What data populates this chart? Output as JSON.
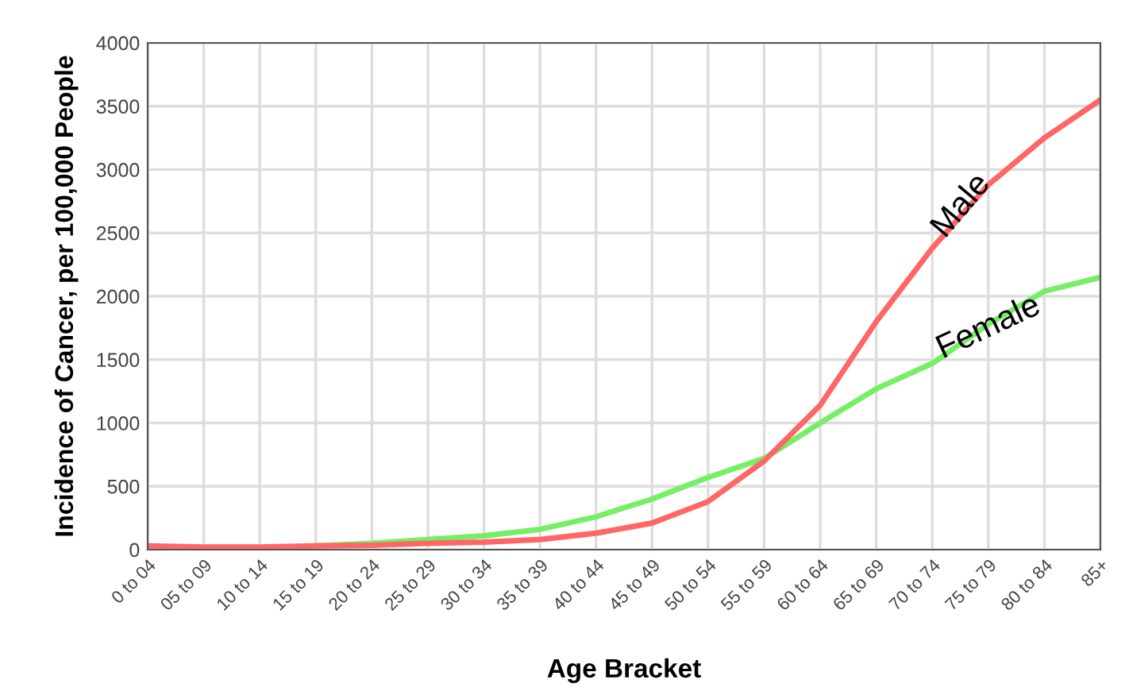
{
  "chart_data": {
    "type": "line",
    "xlabel": "Age Bracket",
    "ylabel": "Incidence of Cancer, per 100,000 People",
    "categories": [
      "0 to 04",
      "05 to 09",
      "10 to 14",
      "15 to 19",
      "20 to 24",
      "25 to 29",
      "30 to 34",
      "35 to 39",
      "40 to 44",
      "45 to 49",
      "50 to 54",
      "55 to 59",
      "60 to 64",
      "65 to 69",
      "70 to 74",
      "75 to 79",
      "80 to 84",
      "85+"
    ],
    "series": [
      {
        "name": "Female",
        "color": "#77ee66",
        "values": [
          null,
          null,
          null,
          30,
          50,
          80,
          110,
          160,
          260,
          400,
          570,
          720,
          1000,
          1270,
          1470,
          1780,
          2040,
          2150
        ]
      },
      {
        "name": "Male",
        "color": "#ff6666",
        "values": [
          30,
          20,
          20,
          30,
          35,
          50,
          60,
          80,
          130,
          210,
          380,
          700,
          1140,
          1800,
          2380,
          2880,
          3250,
          3550
        ]
      }
    ],
    "ylim": [
      0,
      4000
    ],
    "yticks": [
      0,
      500,
      1000,
      1500,
      2000,
      2500,
      3000,
      3500,
      4000
    ],
    "grid": true,
    "marker": "none",
    "line_style": "solid"
  }
}
